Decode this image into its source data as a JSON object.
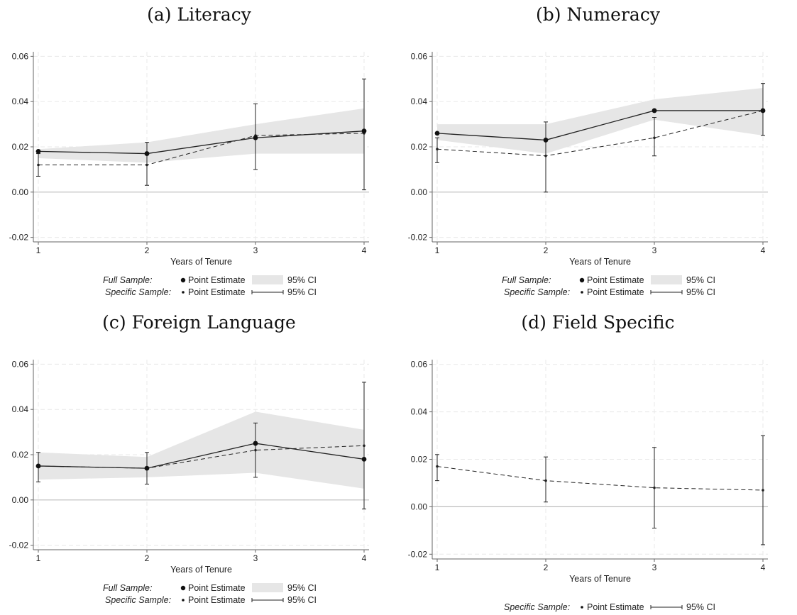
{
  "chart_data": [
    {
      "type": "line",
      "title": "(a) Literacy",
      "xlabel": "Years of Tenure",
      "ylabel": "",
      "x": [
        1,
        2,
        3,
        4
      ],
      "ylim": [
        -0.022,
        0.062
      ],
      "yticks": [
        "0.06",
        "0.04",
        "0.02",
        "0.00",
        "-0.02"
      ],
      "ytick_values": [
        0.06,
        0.04,
        0.02,
        0.0,
        -0.02
      ],
      "xticks": [
        "1",
        "2",
        "3",
        "4"
      ],
      "full_sample": {
        "estimate": [
          0.018,
          0.017,
          0.024,
          0.027
        ],
        "ci_low": [
          0.015,
          0.013,
          0.017,
          0.017
        ],
        "ci_high": [
          0.019,
          0.022,
          0.03,
          0.037
        ]
      },
      "specific_sample": {
        "estimate": [
          0.012,
          0.012,
          0.025,
          0.026
        ],
        "ci_low": [
          0.007,
          0.003,
          0.01,
          0.001
        ],
        "ci_high": [
          0.017,
          0.022,
          0.039,
          0.05
        ]
      },
      "legend": {
        "full_label": "Full Sample:",
        "specific_label": "Specific Sample:",
        "point_estimate": "Point Estimate",
        "ci": "95% CI"
      }
    },
    {
      "type": "line",
      "title": "(b) Numeracy",
      "xlabel": "Years of Tenure",
      "ylabel": "",
      "x": [
        1,
        2,
        3,
        4
      ],
      "ylim": [
        -0.022,
        0.062
      ],
      "yticks": [
        "0.06",
        "0.04",
        "0.02",
        "0.00",
        "-0.02"
      ],
      "ytick_values": [
        0.06,
        0.04,
        0.02,
        0.0,
        -0.02
      ],
      "xticks": [
        "1",
        "2",
        "3",
        "4"
      ],
      "full_sample": {
        "estimate": [
          0.026,
          0.023,
          0.036,
          0.036
        ],
        "ci_low": [
          0.023,
          0.017,
          0.032,
          0.025
        ],
        "ci_high": [
          0.03,
          0.03,
          0.041,
          0.046
        ]
      },
      "specific_sample": {
        "estimate": [
          0.019,
          0.016,
          0.024,
          0.036
        ],
        "ci_low": [
          0.013,
          0.0,
          0.016,
          0.025
        ],
        "ci_high": [
          0.024,
          0.031,
          0.033,
          0.048
        ]
      },
      "legend": {
        "full_label": "Full Sample:",
        "specific_label": "Specific Sample:",
        "point_estimate": "Point Estimate",
        "ci": "95% CI"
      }
    },
    {
      "type": "line",
      "title": "(c) Foreign Language",
      "xlabel": "Years of Tenure",
      "ylabel": "",
      "x": [
        1,
        2,
        3,
        4
      ],
      "ylim": [
        -0.022,
        0.062
      ],
      "yticks": [
        "0.06",
        "0.04",
        "0.02",
        "0.00",
        "-0.02"
      ],
      "ytick_values": [
        0.06,
        0.04,
        0.02,
        0.0,
        -0.02
      ],
      "xticks": [
        "1",
        "2",
        "3",
        "4"
      ],
      "full_sample": {
        "estimate": [
          0.015,
          0.014,
          0.025,
          0.018
        ],
        "ci_low": [
          0.009,
          0.01,
          0.012,
          0.005
        ],
        "ci_high": [
          0.021,
          0.019,
          0.039,
          0.031
        ]
      },
      "specific_sample": {
        "estimate": [
          0.015,
          0.014,
          0.022,
          0.024
        ],
        "ci_low": [
          0.008,
          0.007,
          0.01,
          -0.004
        ],
        "ci_high": [
          0.021,
          0.021,
          0.034,
          0.052
        ]
      },
      "legend": {
        "full_label": "Full Sample:",
        "specific_label": "Specific Sample:",
        "point_estimate": "Point Estimate",
        "ci": "95% CI"
      }
    },
    {
      "type": "line",
      "title": "(d) Field Specific",
      "xlabel": "Years of Tenure",
      "ylabel": "",
      "x": [
        1,
        2,
        3,
        4
      ],
      "ylim": [
        -0.022,
        0.062
      ],
      "yticks": [
        "0.06",
        "0.04",
        "0.02",
        "0.00",
        "-0.02"
      ],
      "ytick_values": [
        0.06,
        0.04,
        0.02,
        0.0,
        -0.02
      ],
      "xticks": [
        "1",
        "2",
        "3",
        "4"
      ],
      "full_sample": null,
      "specific_sample": {
        "estimate": [
          0.017,
          0.011,
          0.008,
          0.007
        ],
        "ci_low": [
          0.011,
          0.002,
          -0.009,
          -0.016
        ],
        "ci_high": [
          0.022,
          0.021,
          0.025,
          0.03
        ]
      },
      "legend": {
        "full_label": "",
        "specific_label": "Specific Sample:",
        "point_estimate": "Point Estimate",
        "ci": "95% CI"
      }
    }
  ],
  "style": {
    "band_color": "#e6e6e6",
    "line_color": "#222222",
    "grid_color": "#e8e8e8",
    "zero_line_color": "#bdbdbd",
    "axis_color": "#666666"
  }
}
